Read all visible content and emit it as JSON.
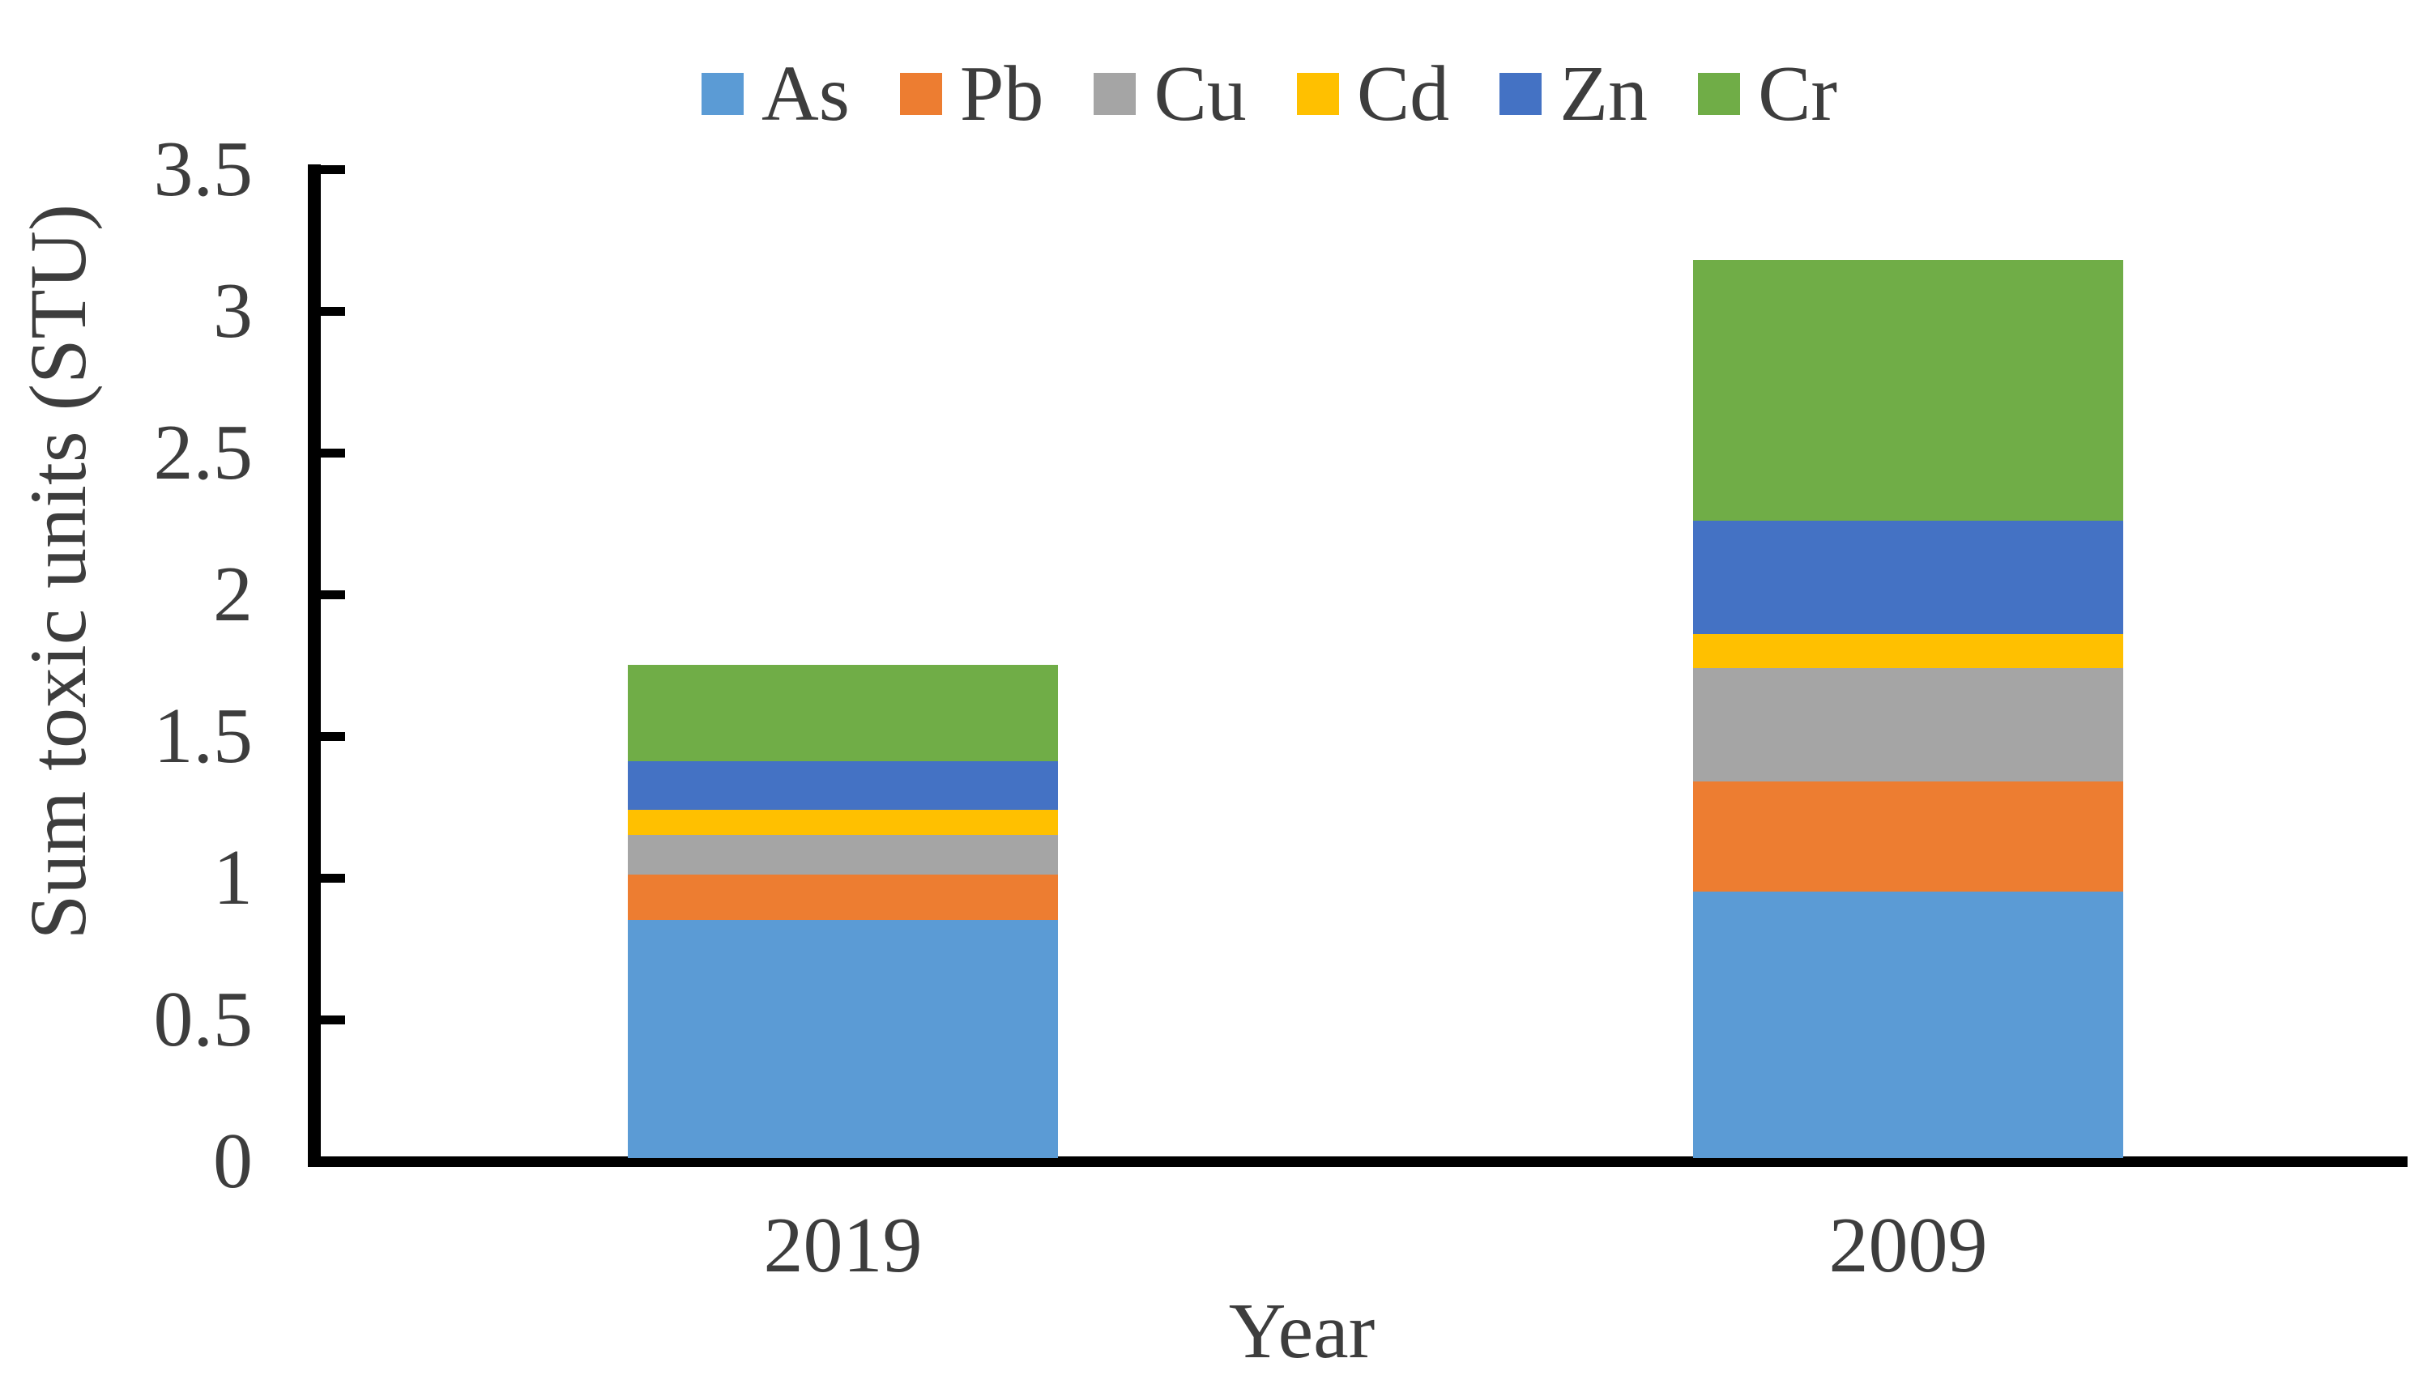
{
  "chart_data": {
    "type": "bar",
    "stacked": true,
    "title": "",
    "xlabel": "Year",
    "ylabel": "Sum toxic units (STU)",
    "categories": [
      "2019",
      "2009"
    ],
    "series": [
      {
        "name": "As",
        "color": "#5B9BD5",
        "values": [
          0.84,
          0.94
        ]
      },
      {
        "name": "Pb",
        "color": "#ED7D31",
        "values": [
          0.16,
          0.39
        ]
      },
      {
        "name": "Cu",
        "color": "#A5A5A5",
        "values": [
          0.14,
          0.4
        ]
      },
      {
        "name": "Cd",
        "color": "#FFC000",
        "values": [
          0.09,
          0.12
        ]
      },
      {
        "name": "Zn",
        "color": "#4472C4",
        "values": [
          0.17,
          0.4
        ]
      },
      {
        "name": "Cr",
        "color": "#70AD47",
        "values": [
          0.34,
          0.92
        ]
      }
    ],
    "totals": [
      1.74,
      3.17
    ],
    "ylim": [
      0,
      3.5
    ],
    "ytick_step": 0.5,
    "ytick_labels": [
      "3.5",
      "3",
      "2.5",
      "2",
      "1.5",
      "1",
      "0.5",
      "0"
    ],
    "legend_position": "top",
    "legend_order": [
      "As",
      "Pb",
      "Cu",
      "Cd",
      "Zn",
      "Cr"
    ],
    "grid": false,
    "axis_color": "#000000",
    "text_color": "#3d3d3d"
  }
}
